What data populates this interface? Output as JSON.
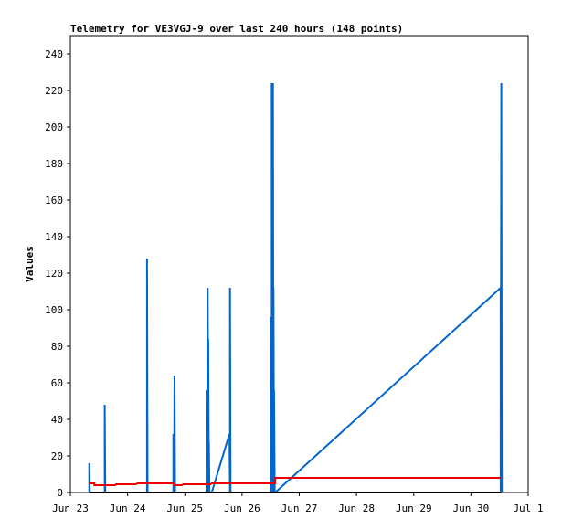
{
  "chart_data": {
    "type": "line",
    "title": "Telemetry for VE3VGJ-9 over last 240 hours (148 points)",
    "ylabel": "Values",
    "xlabel": "",
    "ylim": [
      0,
      250
    ],
    "xlim": [
      "Jun 23",
      "Jul 1"
    ],
    "x_ticks": [
      "Jun 23",
      "Jun 24",
      "Jun 25",
      "Jun 26",
      "Jun 27",
      "Jun 28",
      "Jun 29",
      "Jun 30",
      "Jul 1"
    ],
    "y_ticks": [
      0,
      20,
      40,
      60,
      80,
      100,
      120,
      140,
      160,
      180,
      200,
      220,
      240
    ],
    "x_unit": "days since Jun 23 00:00",
    "series": [
      {
        "color": "#0066cc",
        "points": [
          [
            0.33,
            0
          ],
          [
            0.33,
            16
          ],
          [
            0.34,
            0
          ],
          [
            0.6,
            0
          ],
          [
            0.6,
            48
          ],
          [
            0.61,
            0
          ],
          [
            1.34,
            0
          ],
          [
            1.34,
            128
          ],
          [
            1.35,
            0
          ],
          [
            1.8,
            0
          ],
          [
            1.8,
            32
          ],
          [
            1.81,
            0
          ],
          [
            1.82,
            64
          ],
          [
            1.83,
            0
          ],
          [
            2.38,
            0
          ],
          [
            2.38,
            56
          ],
          [
            2.39,
            0
          ],
          [
            2.4,
            112
          ],
          [
            2.41,
            0
          ],
          [
            2.41,
            84
          ],
          [
            2.42,
            0
          ],
          [
            2.42,
            28
          ],
          [
            2.43,
            0
          ],
          [
            2.47,
            0
          ],
          [
            2.78,
            32
          ],
          [
            2.79,
            0
          ],
          [
            2.79,
            112
          ],
          [
            2.8,
            0
          ],
          [
            3.51,
            0
          ],
          [
            3.51,
            96
          ],
          [
            3.52,
            0
          ],
          [
            3.52,
            224
          ],
          [
            3.53,
            0
          ],
          [
            3.54,
            224
          ],
          [
            3.55,
            0
          ],
          [
            3.55,
            112
          ],
          [
            3.56,
            0
          ],
          [
            3.56,
            56
          ],
          [
            3.57,
            0
          ],
          [
            3.58,
            0
          ],
          [
            7.52,
            112
          ],
          [
            7.52,
            0
          ],
          [
            7.53,
            224
          ],
          [
            7.54,
            0
          ]
        ]
      },
      {
        "color": "#ee0000",
        "points": [
          [
            0.33,
            5
          ],
          [
            0.42,
            5
          ],
          [
            0.42,
            4
          ],
          [
            0.78,
            4
          ],
          [
            0.8,
            4.5
          ],
          [
            1.15,
            4.5
          ],
          [
            1.17,
            5
          ],
          [
            1.8,
            5
          ],
          [
            1.82,
            4
          ],
          [
            1.95,
            4
          ],
          [
            1.97,
            4.5
          ],
          [
            2.45,
            4.5
          ],
          [
            2.47,
            5
          ],
          [
            3.58,
            5
          ],
          [
            3.58,
            8
          ],
          [
            7.52,
            8
          ]
        ]
      },
      {
        "color": "#000000",
        "points": [
          [
            0.33,
            0
          ],
          [
            7.53,
            0
          ]
        ]
      }
    ]
  }
}
